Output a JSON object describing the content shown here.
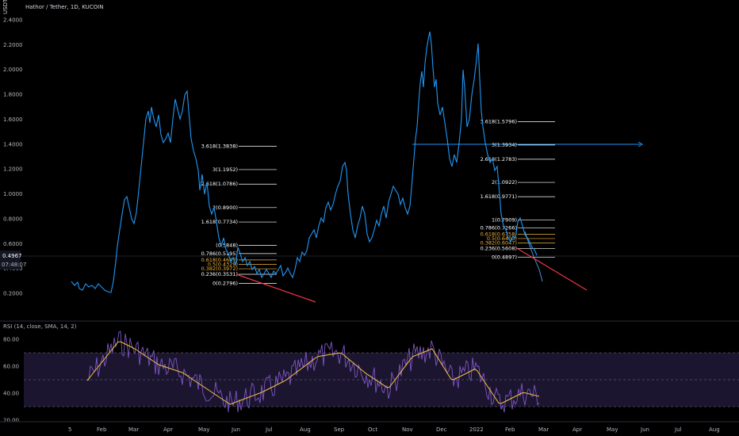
{
  "header": {
    "title": "Hathor / Tether, 1D, KUCOIN",
    "currency": "USDT"
  },
  "price_axis": {
    "ticks": [
      "2.4000",
      "2.2000",
      "2.0000",
      "1.8000",
      "1.6000",
      "1.4000",
      "1.2000",
      "1.0000",
      "0.8000",
      "0.6000",
      "0.4000",
      "0.2000"
    ],
    "current_price": "0.4967",
    "countdown": "07:48:07"
  },
  "time_axis": {
    "ticks": [
      "5",
      "Feb",
      "Mar",
      "Apr",
      "May",
      "Jun",
      "Jul",
      "Aug",
      "Sep",
      "Oct",
      "Nov",
      "Dec",
      "2022",
      "Feb",
      "Mar",
      "Apr",
      "May",
      "Jun",
      "Jul",
      "Aug"
    ]
  },
  "rsi": {
    "label": "RSI (14, close, SMA, 14, 2)",
    "ticks": [
      "80.00",
      "60.00",
      "40.00",
      "20.00"
    ]
  },
  "fib_left": {
    "levels": [
      {
        "label": "3.618(1.3838)",
        "value": 1.3838
      },
      {
        "label": "3(1.1952)",
        "value": 1.1952
      },
      {
        "label": "2.618(1.0786)",
        "value": 1.0786
      },
      {
        "label": "2(0.8900)",
        "value": 0.89
      },
      {
        "label": "1.618(0.7734)",
        "value": 0.7734
      },
      {
        "label": "(0.5848)",
        "value": 0.5848
      },
      {
        "label": "0.786(0.5195)",
        "value": 0.5195
      },
      {
        "label": "0.618(0.4687)",
        "value": 0.4687
      },
      {
        "label": "0.5(0.4329)",
        "value": 0.4329
      },
      {
        "label": "0.382(0.3972)",
        "value": 0.3972
      },
      {
        "label": "0.236(0.3531)",
        "value": 0.3531
      },
      {
        "label": "0(0.2796)",
        "value": 0.2796
      }
    ]
  },
  "fib_right": {
    "levels": [
      {
        "label": "3.618(1.5796)",
        "value": 1.5796
      },
      {
        "label": "3(1.3934)",
        "value": 1.3934
      },
      {
        "label": "2.618(1.2783)",
        "value": 1.2783
      },
      {
        "label": "2(1.0922)",
        "value": 1.0922
      },
      {
        "label": "1.618(0.9771)",
        "value": 0.9771
      },
      {
        "label": "1(0.7909)",
        "value": 0.7909
      },
      {
        "label": "0.786(0.7266)",
        "value": 0.7266
      },
      {
        "label": "0.618(0.6758)",
        "value": 0.6758
      },
      {
        "label": "0.5(0.6403)",
        "value": 0.6403
      },
      {
        "label": "0.382(0.6047)",
        "value": 0.6047
      },
      {
        "label": "0.236(0.5608)",
        "value": 0.5608
      },
      {
        "label": "0(0.4897)",
        "value": 0.4897
      }
    ]
  },
  "colors": {
    "price_line": "#2196f3",
    "rsi_line": "#7e57c2",
    "rsi_sma": "#f5c242",
    "trendline": "#f23645",
    "fib_line": "#ffffff",
    "fib_accent": "#f2b33d",
    "price_badge": "#131722"
  }
}
